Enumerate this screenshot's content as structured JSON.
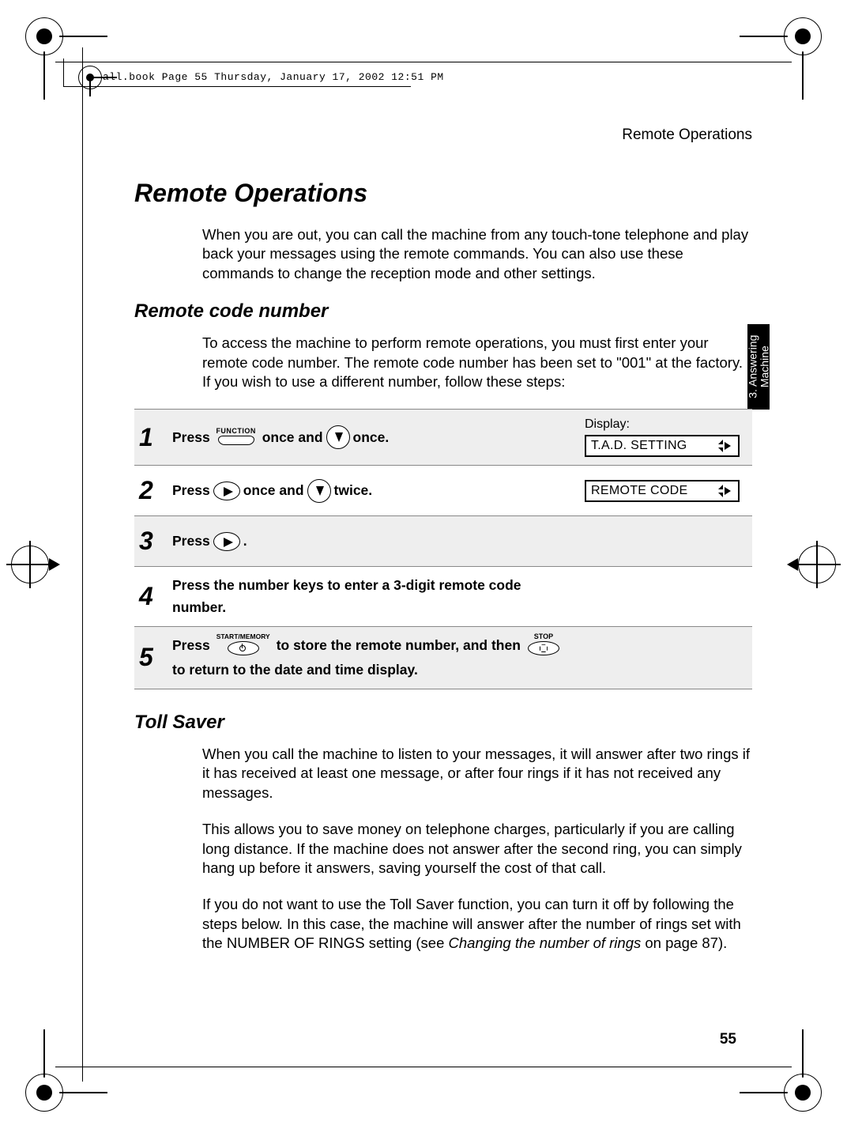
{
  "page": {
    "running_header": "all.book  Page 55  Thursday, January 17, 2002  12:51 PM",
    "section_label": "Remote Operations",
    "page_number": "55"
  },
  "side_tab": {
    "line1": "3. Answering",
    "line2": "Machine"
  },
  "h1": "Remote Operations",
  "intro": "When you are out, you can call the machine from any touch-tone telephone and play back your messages using the remote commands. You can also use these commands to change the reception mode and other settings.",
  "h2a": "Remote code number",
  "para_a": "To access the machine to perform remote operations, you must first enter your remote code number. The remote code number has been set to \"001\" at the factory. If you wish to use a different number, follow these steps:",
  "steps": [
    {
      "num": "1",
      "segments": [
        "Press ",
        "{FUNCTION}",
        " once and ",
        "{DOWN}",
        " once."
      ],
      "display_label": "Display:",
      "lcd": "T.A.D. SETTING"
    },
    {
      "num": "2",
      "segments": [
        "Press ",
        "{RIGHTFLAT}",
        " once and ",
        "{DOWN}",
        " twice."
      ],
      "lcd": "REMOTE CODE"
    },
    {
      "num": "3",
      "segments": [
        "Press ",
        "{RIGHTFLAT}",
        " ."
      ]
    },
    {
      "num": "4",
      "segments": [
        "Press the number keys to enter a 3-digit remote code number."
      ]
    },
    {
      "num": "5",
      "segments": [
        "Press ",
        "{STARTMEM}",
        " to store the remote number, and then ",
        "{STOP}",
        " to return to the date and time display."
      ]
    }
  ],
  "labels": {
    "function": "FUNCTION",
    "startmem": "START/MEMORY",
    "stop": "STOP"
  },
  "h2b": "Toll Saver",
  "toll_p1": "When you call the machine to listen to your messages, it will answer after two rings if it has received at least one message, or after four rings if it has not received any messages.",
  "toll_p2": "This allows you to save money on telephone charges, particularly if you are calling long distance. If the machine does not answer after the second ring, you can simply hang up before it answers, saving yourself the cost of that call.",
  "toll_p3a": "If you do not want to use the Toll Saver function, you can turn it off by following the steps below. In this case, the machine will answer after the number of rings set with the NUMBER OF RINGS setting (see ",
  "toll_p3b": "Changing the number of rings",
  "toll_p3c": " on page 87).",
  "colors": {
    "shade": "#eeeeee",
    "rule": "#888888",
    "text": "#000000",
    "bg": "#ffffff"
  }
}
